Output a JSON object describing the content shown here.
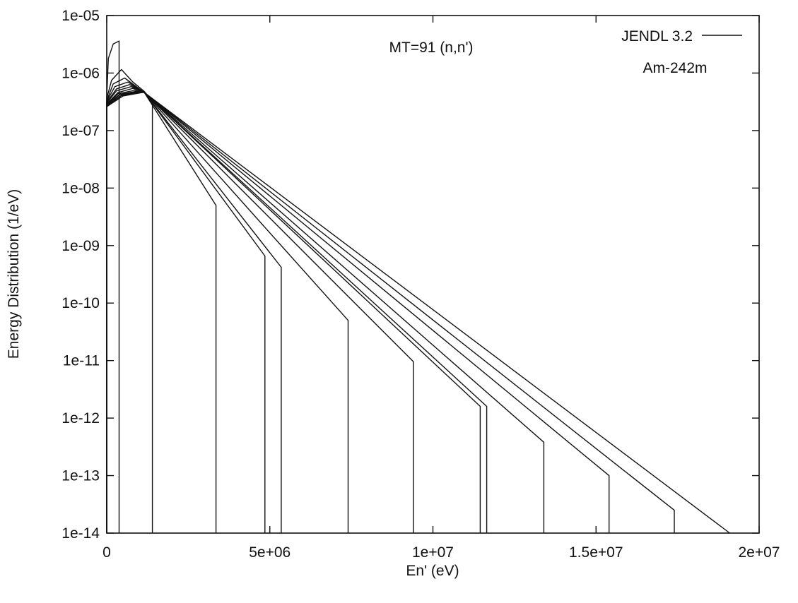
{
  "chart_data": {
    "type": "line",
    "title": "",
    "xlabel": "En' (eV)",
    "ylabel": "Energy Distribution (1/eV)",
    "xlim": [
      0,
      20000000
    ],
    "ylim": [
      1e-14,
      1e-05
    ],
    "y_scale": "log",
    "grid": false,
    "x_ticks": [
      0,
      5000000,
      10000000,
      15000000,
      20000000
    ],
    "x_tick_labels": [
      "0",
      "5e+06",
      "1e+07",
      "1.5e+07",
      "2e+07"
    ],
    "y_ticks": [
      1e-05,
      1e-06,
      1e-07,
      1e-08,
      1e-09,
      1e-10,
      1e-11,
      1e-12,
      1e-13,
      1e-14
    ],
    "y_tick_labels": [
      "1e-05",
      "1e-06",
      "1e-07",
      "1e-08",
      "1e-09",
      "1e-10",
      "1e-11",
      "1e-12",
      "1e-13",
      "1e-14"
    ],
    "annotations": [
      "MT=91 (n,n')",
      "Am-242m"
    ],
    "legend": {
      "label": "JENDL 3.2",
      "placement": "top-right"
    },
    "series": [
      {
        "points": [
          [
            0,
            1e-14
          ],
          [
            0,
            3.8e-07
          ],
          [
            50000,
            1.8e-06
          ],
          [
            200000,
            3.2e-06
          ],
          [
            380000,
            3.6e-06
          ],
          [
            380000,
            1e-14
          ]
        ]
      },
      {
        "points": [
          [
            0,
            1e-14
          ],
          [
            0,
            3.6e-07
          ],
          [
            150000,
            7.5e-07
          ],
          [
            450000,
            1.15e-06
          ],
          [
            800000,
            7e-07
          ],
          [
            1150000,
            4.8e-07
          ],
          [
            1400000,
            3.2e-07
          ],
          [
            1400000,
            1e-14
          ]
        ]
      },
      {
        "points": [
          [
            0,
            1e-14
          ],
          [
            0,
            3.3e-07
          ],
          [
            200000,
            6.5e-07
          ],
          [
            550000,
            8.2e-07
          ],
          [
            1150000,
            4.6e-07
          ],
          [
            3350000,
            5e-09
          ],
          [
            3350000,
            1e-14
          ]
        ]
      },
      {
        "points": [
          [
            0,
            1e-14
          ],
          [
            0,
            3.2e-07
          ],
          [
            250000,
            5.8e-07
          ],
          [
            650000,
            7e-07
          ],
          [
            1150000,
            4.6e-07
          ],
          [
            4850000,
            6.6e-10
          ],
          [
            4850000,
            1e-14
          ]
        ]
      },
      {
        "points": [
          [
            0,
            1e-14
          ],
          [
            0,
            3.1e-07
          ],
          [
            300000,
            5.3e-07
          ],
          [
            700000,
            6.3e-07
          ],
          [
            1150000,
            4.6e-07
          ],
          [
            5350000,
            4.2e-10
          ],
          [
            5350000,
            1e-14
          ]
        ]
      },
      {
        "points": [
          [
            0,
            1e-14
          ],
          [
            0,
            3e-07
          ],
          [
            300000,
            4.9e-07
          ],
          [
            750000,
            5.8e-07
          ],
          [
            1150000,
            4.6e-07
          ],
          [
            7400000,
            5e-11
          ],
          [
            7400000,
            1e-14
          ]
        ]
      },
      {
        "points": [
          [
            0,
            1e-14
          ],
          [
            0,
            2.9e-07
          ],
          [
            350000,
            4.6e-07
          ],
          [
            800000,
            5.4e-07
          ],
          [
            1150000,
            4.6e-07
          ],
          [
            9400000,
            9.6e-12
          ],
          [
            9400000,
            1e-14
          ]
        ]
      },
      {
        "points": [
          [
            0,
            1e-14
          ],
          [
            0,
            2.8e-07
          ],
          [
            350000,
            4.4e-07
          ],
          [
            850000,
            5e-07
          ],
          [
            1150000,
            4.6e-07
          ],
          [
            11450000,
            1.6e-12
          ],
          [
            11450000,
            1e-14
          ]
        ]
      },
      {
        "points": [
          [
            0,
            1e-14
          ],
          [
            0,
            2.8e-07
          ],
          [
            400000,
            4.3e-07
          ],
          [
            900000,
            4.8e-07
          ],
          [
            1150000,
            4.6e-07
          ],
          [
            11650000,
            1.6e-12
          ],
          [
            11650000,
            1e-14
          ]
        ]
      },
      {
        "points": [
          [
            0,
            1e-14
          ],
          [
            0,
            2.7e-07
          ],
          [
            400000,
            4.2e-07
          ],
          [
            950000,
            4.7e-07
          ],
          [
            1150000,
            4.6e-07
          ],
          [
            13400000,
            3.8e-13
          ],
          [
            13400000,
            1e-14
          ]
        ]
      },
      {
        "points": [
          [
            0,
            1e-14
          ],
          [
            0,
            2.7e-07
          ],
          [
            450000,
            4.1e-07
          ],
          [
            1000000,
            4.65e-07
          ],
          [
            1150000,
            4.6e-07
          ],
          [
            15400000,
            1e-13
          ],
          [
            15400000,
            1e-14
          ]
        ]
      },
      {
        "points": [
          [
            0,
            1e-14
          ],
          [
            0,
            2.6e-07
          ],
          [
            450000,
            4.05e-07
          ],
          [
            1050000,
            4.62e-07
          ],
          [
            1150000,
            4.6e-07
          ],
          [
            17400000,
            2.5e-14
          ],
          [
            17400000,
            1e-14
          ]
        ]
      },
      {
        "points": [
          [
            0,
            1e-14
          ],
          [
            0,
            2.6e-07
          ],
          [
            500000,
            4e-07
          ],
          [
            1100000,
            4.6e-07
          ],
          [
            1150000,
            4.6e-07
          ],
          [
            19100000,
            1e-14
          ]
        ]
      }
    ]
  }
}
